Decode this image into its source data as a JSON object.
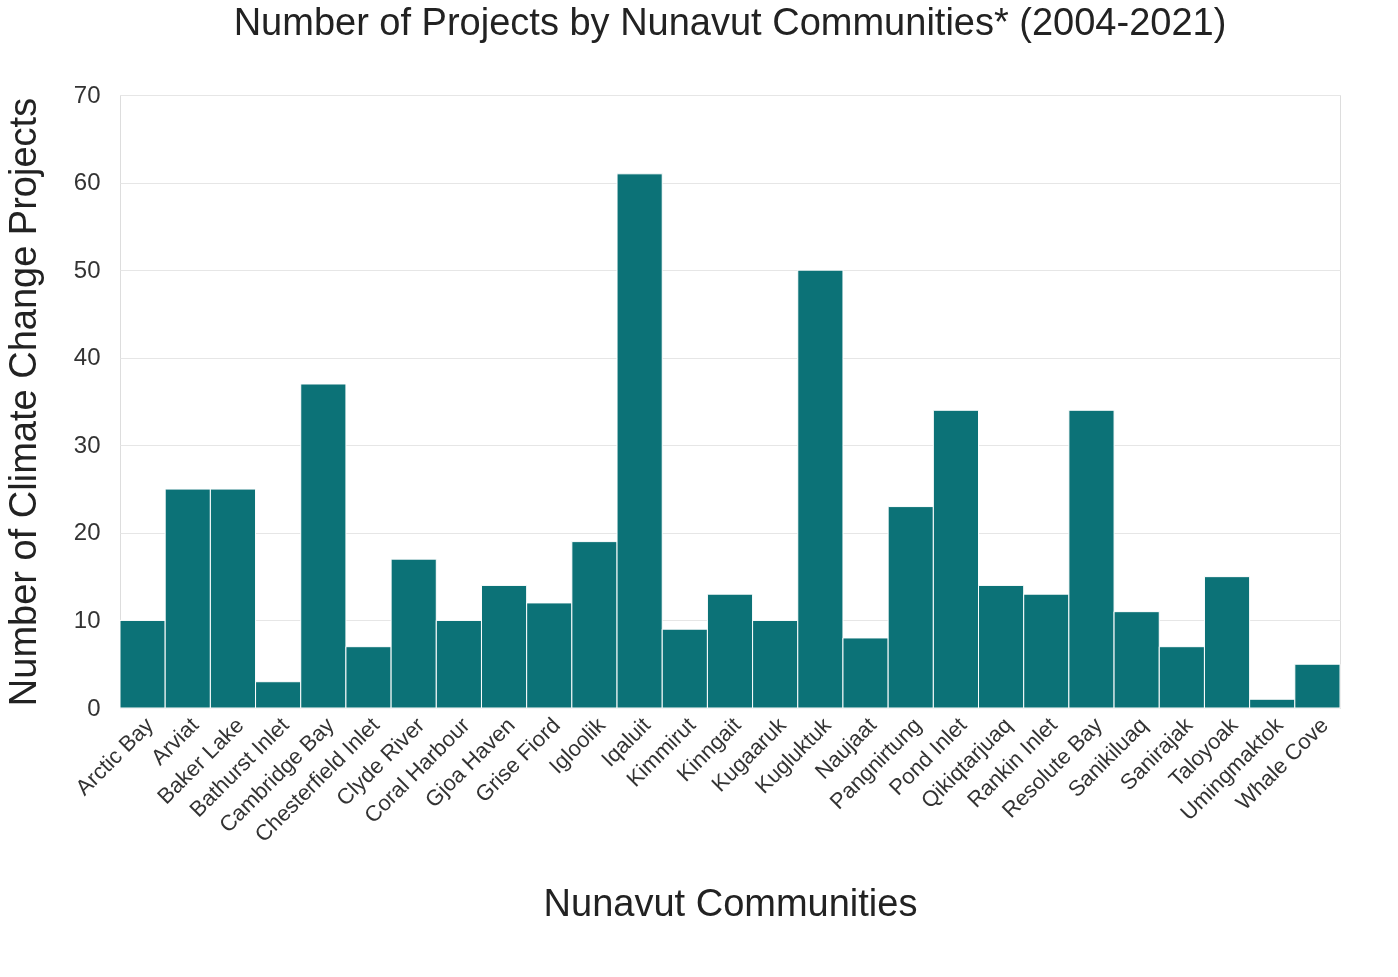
{
  "chart_data": {
    "type": "bar",
    "title": "Number of Projects by Nunavut Communities* (2004-2021)",
    "xlabel": "Nunavut Communities",
    "ylabel": "Number of Climate Change Projects",
    "categories": [
      "Arctic Bay",
      "Arviat",
      "Baker Lake",
      "Bathurst Inlet",
      "Cambridge Bay",
      "Chesterfield Inlet",
      "Clyde River",
      "Coral Harbour",
      "Gjoa Haven",
      "Grise Fiord",
      "Igloolik",
      "Iqaluit",
      "Kimmirut",
      "Kinngait",
      "Kugaaruk",
      "Kugluktuk",
      "Naujaat",
      "Pangnirtung",
      "Pond Inlet",
      "Qikiqtarjuaq",
      "Rankin Inlet",
      "Resolute Bay",
      "Sanikiluaq",
      "Sanirajak",
      "Taloyoak",
      "Umingmaktok",
      "Whale Cove"
    ],
    "values": [
      10,
      25,
      25,
      3,
      37,
      7,
      17,
      10,
      14,
      12,
      19,
      61,
      9,
      13,
      10,
      50,
      8,
      23,
      34,
      14,
      13,
      34,
      11,
      7,
      15,
      1,
      5
    ],
    "color": "#0c7277",
    "ylim": [
      0,
      70
    ],
    "yticks": [
      0,
      10,
      20,
      30,
      40,
      50,
      60,
      70
    ],
    "grid": "y"
  }
}
